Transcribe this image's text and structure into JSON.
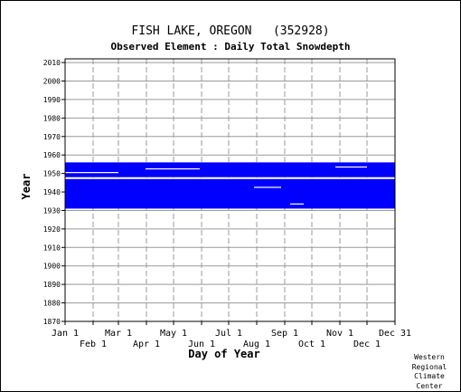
{
  "chart_data": {
    "type": "heatmap",
    "title": "FISH LAKE, OREGON   (352928)",
    "subtitle": "Observed Element : Daily Total Snowdepth",
    "xlabel": "Day of Year",
    "ylabel": "Year",
    "ylim": [
      1870,
      2012
    ],
    "xlim_days": [
      1,
      366
    ],
    "y_ticks": [
      1870,
      1880,
      1890,
      1900,
      1910,
      1920,
      1930,
      1940,
      1950,
      1960,
      1970,
      1980,
      1990,
      2000,
      2010
    ],
    "x_ticks_top": [
      {
        "label": "Jan 1",
        "day": 1
      },
      {
        "label": "Mar 1",
        "day": 60
      },
      {
        "label": "May 1",
        "day": 121
      },
      {
        "label": "Jul 1",
        "day": 182
      },
      {
        "label": "Sep 1",
        "day": 244
      },
      {
        "label": "Nov 1",
        "day": 305
      },
      {
        "label": "Dec 31",
        "day": 366
      }
    ],
    "x_ticks_bottom": [
      {
        "label": "Feb 1",
        "day": 32
      },
      {
        "label": "Apr 1",
        "day": 91
      },
      {
        "label": "Jun 1",
        "day": 152
      },
      {
        "label": "Aug 1",
        "day": 213
      },
      {
        "label": "Oct 1",
        "day": 274
      },
      {
        "label": "Dec 1",
        "day": 335
      }
    ],
    "grid": true,
    "data_color": "#0000ff",
    "coverage": [
      {
        "year_start": 1931,
        "year_end": 1946,
        "day_start": 1,
        "day_end": 366,
        "status": "observed"
      },
      {
        "year_start": 1948,
        "year_end": 1955,
        "day_start": 1,
        "day_end": 366,
        "status": "observed"
      }
    ],
    "gaps": [
      {
        "year": 1947,
        "day_start": 1,
        "day_end": 366
      },
      {
        "year": 1950,
        "day_start": 1,
        "day_end": 60
      },
      {
        "year": 1952,
        "day_start": 90,
        "day_end": 150
      },
      {
        "year": 1942,
        "day_start": 210,
        "day_end": 240
      },
      {
        "year": 1933,
        "day_start": 250,
        "day_end": 265
      },
      {
        "year": 1953,
        "day_start": 300,
        "day_end": 335
      }
    ]
  },
  "credit": {
    "line1": "Western",
    "line2": "Regional",
    "line3": "Climate",
    "line4": "Center"
  }
}
